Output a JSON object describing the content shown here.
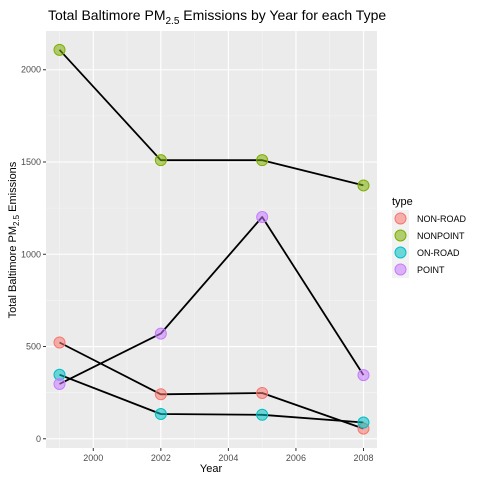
{
  "chart_data": {
    "type": "line",
    "title_parts": {
      "before": "Total Baltimore  PM",
      "sub": "2.5",
      "after": " Emissions by Year for each Type"
    },
    "xlabel": "Year",
    "ylabel_parts": {
      "before": "Total Baltimore PM",
      "sub": "2.5",
      "after": " Emissions"
    },
    "xlim": [
      1998.6,
      2008.4
    ],
    "ylim": [
      -50,
      2210
    ],
    "x_ticks": [
      2000,
      2002,
      2004,
      2006,
      2008
    ],
    "y_ticks": [
      0,
      500,
      1000,
      1500,
      2000
    ],
    "grid": true,
    "legend_position": "right",
    "legend_title": "type",
    "x": [
      1999,
      2002,
      2005,
      2008
    ],
    "series": [
      {
        "name": "NON-ROAD",
        "color": "#f8766d",
        "values": [
          522,
          241,
          248,
          55
        ]
      },
      {
        "name": "NONPOINT",
        "color": "#7cae00",
        "values": [
          2108,
          1510,
          1510,
          1373
        ]
      },
      {
        "name": "ON-ROAD",
        "color": "#00bfc4",
        "values": [
          347,
          134,
          130,
          88
        ]
      },
      {
        "name": "POINT",
        "color": "#c77cff",
        "values": [
          297,
          570,
          1202,
          345
        ]
      }
    ]
  }
}
